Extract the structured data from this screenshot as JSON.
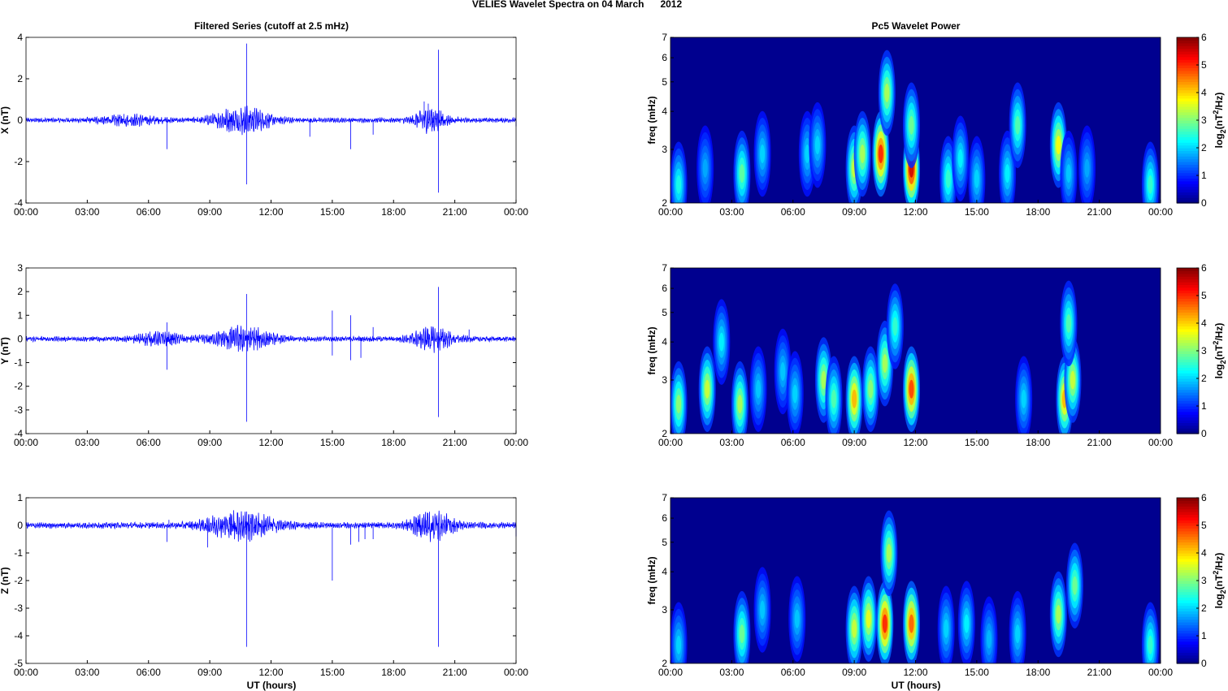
{
  "title": "VELIES Wavelet Spectra on 04 March      2012",
  "x_ticks": [
    "00:00",
    "03:00",
    "06:00",
    "09:00",
    "12:00",
    "15:00",
    "18:00",
    "21:00",
    "00:00"
  ],
  "x_label": "UT (hours)",
  "left_title": "Filtered Series (cutoff at 2.5 mHz)",
  "right_title": "Pc5 Wavelet Power",
  "spec_ylabel": "freq (mHz)",
  "freq_ticks": [
    "2",
    "3",
    "4",
    "5",
    "6",
    "7"
  ],
  "freq_values": [
    2,
    3,
    4,
    5,
    6,
    7
  ],
  "colorbar_ticks": [
    "0",
    "1",
    "2",
    "3",
    "4",
    "5",
    "6"
  ],
  "colorbar_label": {
    "base": "log",
    "sub": "2",
    "mid": "(nT",
    "sup": "2",
    "end": "/Hz)"
  },
  "colors": {
    "series_line": "#0000ff",
    "spectrum_background": "#00008f"
  },
  "chart_data": [
    {
      "type": "line",
      "series_name": "X",
      "ylabel": "X (nT)",
      "y_ticks": [
        "-4",
        "-2",
        "0",
        "2",
        "4"
      ],
      "ylim": [
        -4,
        4
      ],
      "xlim_hours": [
        0,
        24
      ],
      "spikes": [
        {
          "t": 6.9,
          "v": -1.4
        },
        {
          "t": 10.8,
          "v": 3.7
        },
        {
          "t": 10.8,
          "v": -3.1
        },
        {
          "t": 13.9,
          "v": -0.8
        },
        {
          "t": 15.9,
          "v": -1.4
        },
        {
          "t": 17.0,
          "v": -0.7
        },
        {
          "t": 19.5,
          "v": 0.9
        },
        {
          "t": 19.7,
          "v": 0.8
        },
        {
          "t": 20.2,
          "v": 3.4
        },
        {
          "t": 20.2,
          "v": -3.5
        },
        {
          "t": 4.8,
          "v": 0.3
        },
        {
          "t": 24.0,
          "v": -0.3
        }
      ],
      "activity_bursts": [
        {
          "t": 10.6,
          "amp": 0.55,
          "width": 1.4
        },
        {
          "t": 19.8,
          "amp": 0.5,
          "width": 0.8
        },
        {
          "t": 5.0,
          "amp": 0.2,
          "width": 1.5
        }
      ],
      "base_noise": 0.1
    },
    {
      "type": "line",
      "series_name": "Y",
      "ylabel": "Y (nT)",
      "y_ticks": [
        "-4",
        "-3",
        "-2",
        "-1",
        "0",
        "1",
        "2",
        "3"
      ],
      "ylim": [
        -4,
        3
      ],
      "xlim_hours": [
        0,
        24
      ],
      "spikes": [
        {
          "t": 6.9,
          "v": 0.7
        },
        {
          "t": 6.9,
          "v": -1.3
        },
        {
          "t": 10.8,
          "v": 1.9
        },
        {
          "t": 10.8,
          "v": -3.5
        },
        {
          "t": 15.0,
          "v": 1.2
        },
        {
          "t": 15.0,
          "v": -0.7
        },
        {
          "t": 15.9,
          "v": 1.0
        },
        {
          "t": 15.9,
          "v": -0.9
        },
        {
          "t": 16.4,
          "v": -0.8
        },
        {
          "t": 17.0,
          "v": 0.5
        },
        {
          "t": 20.2,
          "v": 2.2
        },
        {
          "t": 20.2,
          "v": -3.3
        },
        {
          "t": 21.7,
          "v": 0.4
        }
      ],
      "activity_bursts": [
        {
          "t": 10.6,
          "amp": 0.45,
          "width": 1.4
        },
        {
          "t": 19.9,
          "amp": 0.4,
          "width": 1.0
        },
        {
          "t": 6.5,
          "amp": 0.2,
          "width": 1.2
        }
      ],
      "base_noise": 0.1
    },
    {
      "type": "line",
      "series_name": "Z",
      "ylabel": "Z (nT)",
      "y_ticks": [
        "-5",
        "-4",
        "-3",
        "-2",
        "-1",
        "0",
        "1"
      ],
      "ylim": [
        -5,
        1
      ],
      "xlim_hours": [
        0,
        24
      ],
      "spikes": [
        {
          "t": 6.9,
          "v": -0.6
        },
        {
          "t": 8.9,
          "v": -0.8
        },
        {
          "t": 10.8,
          "v": 0.5
        },
        {
          "t": 10.8,
          "v": -4.4
        },
        {
          "t": 15.0,
          "v": -2.0
        },
        {
          "t": 15.9,
          "v": -0.7
        },
        {
          "t": 16.3,
          "v": -0.6
        },
        {
          "t": 16.6,
          "v": -0.5
        },
        {
          "t": 17.0,
          "v": -0.5
        },
        {
          "t": 20.2,
          "v": -4.4
        },
        {
          "t": 24.0,
          "v": -0.4
        },
        {
          "t": 7.0,
          "v": 0.2
        }
      ],
      "activity_bursts": [
        {
          "t": 10.5,
          "amp": 0.45,
          "width": 1.6
        },
        {
          "t": 19.9,
          "amp": 0.45,
          "width": 1.0
        }
      ],
      "base_noise": 0.1
    },
    {
      "type": "heatmap",
      "ylabel": "freq (mHz)",
      "ylim_mhz": [
        2,
        7
      ],
      "y_scale": "log",
      "colorbar_range": [
        0,
        6
      ],
      "colormap": "jet",
      "blobs": [
        {
          "t": 0.4,
          "f": 2.3,
          "p": 2.0
        },
        {
          "t": 1.7,
          "f": 2.6,
          "p": 1.3
        },
        {
          "t": 3.5,
          "f": 2.5,
          "p": 2.5
        },
        {
          "t": 4.5,
          "f": 2.9,
          "p": 1.6
        },
        {
          "t": 6.7,
          "f": 2.9,
          "p": 1.6
        },
        {
          "t": 7.2,
          "f": 3.1,
          "p": 1.6
        },
        {
          "t": 9.0,
          "f": 2.6,
          "p": 3.2
        },
        {
          "t": 9.4,
          "f": 2.9,
          "p": 3.0
        },
        {
          "t": 10.3,
          "f": 2.9,
          "p": 5.0
        },
        {
          "t": 10.6,
          "f": 4.6,
          "p": 3.0
        },
        {
          "t": 11.8,
          "f": 2.6,
          "p": 5.5
        },
        {
          "t": 11.8,
          "f": 3.6,
          "p": 2.6
        },
        {
          "t": 13.6,
          "f": 2.4,
          "p": 2.2
        },
        {
          "t": 14.2,
          "f": 2.8,
          "p": 1.8
        },
        {
          "t": 15.0,
          "f": 2.4,
          "p": 1.6
        },
        {
          "t": 16.5,
          "f": 2.5,
          "p": 1.8
        },
        {
          "t": 17.0,
          "f": 3.6,
          "p": 2.4
        },
        {
          "t": 19.0,
          "f": 3.1,
          "p": 3.5
        },
        {
          "t": 19.5,
          "f": 2.5,
          "p": 1.5
        },
        {
          "t": 20.4,
          "f": 2.6,
          "p": 1.3
        },
        {
          "t": 23.5,
          "f": 2.3,
          "p": 2.2
        }
      ]
    },
    {
      "type": "heatmap",
      "ylabel": "freq (mHz)",
      "ylim_mhz": [
        2,
        7
      ],
      "y_scale": "log",
      "colorbar_range": [
        0,
        6
      ],
      "colormap": "jet",
      "blobs": [
        {
          "t": 0.4,
          "f": 2.5,
          "p": 2.8
        },
        {
          "t": 1.8,
          "f": 2.8,
          "p": 3.2
        },
        {
          "t": 2.5,
          "f": 4.0,
          "p": 1.8
        },
        {
          "t": 3.4,
          "f": 2.5,
          "p": 3.0
        },
        {
          "t": 4.3,
          "f": 2.8,
          "p": 1.5
        },
        {
          "t": 5.5,
          "f": 3.2,
          "p": 1.5
        },
        {
          "t": 6.1,
          "f": 2.7,
          "p": 1.6
        },
        {
          "t": 7.5,
          "f": 3.0,
          "p": 3.0
        },
        {
          "t": 8.0,
          "f": 2.6,
          "p": 2.4
        },
        {
          "t": 9.0,
          "f": 2.6,
          "p": 4.0
        },
        {
          "t": 9.8,
          "f": 2.8,
          "p": 2.8
        },
        {
          "t": 10.5,
          "f": 3.4,
          "p": 3.0
        },
        {
          "t": 11.0,
          "f": 4.5,
          "p": 2.2
        },
        {
          "t": 11.8,
          "f": 2.8,
          "p": 4.8
        },
        {
          "t": 17.3,
          "f": 2.6,
          "p": 1.6
        },
        {
          "t": 19.3,
          "f": 2.6,
          "p": 4.0
        },
        {
          "t": 19.7,
          "f": 3.0,
          "p": 3.2
        },
        {
          "t": 19.5,
          "f": 4.6,
          "p": 2.4
        }
      ]
    },
    {
      "type": "heatmap",
      "ylabel": "freq (mHz)",
      "ylim_mhz": [
        2,
        7
      ],
      "y_scale": "log",
      "colorbar_range": [
        0,
        6
      ],
      "colormap": "jet",
      "blobs": [
        {
          "t": 0.4,
          "f": 2.3,
          "p": 1.6
        },
        {
          "t": 3.5,
          "f": 2.5,
          "p": 2.6
        },
        {
          "t": 4.5,
          "f": 3.0,
          "p": 1.5
        },
        {
          "t": 6.2,
          "f": 2.8,
          "p": 1.5
        },
        {
          "t": 9.0,
          "f": 2.6,
          "p": 3.2
        },
        {
          "t": 9.7,
          "f": 2.8,
          "p": 3.4
        },
        {
          "t": 10.5,
          "f": 2.7,
          "p": 5.0
        },
        {
          "t": 10.7,
          "f": 4.6,
          "p": 3.0
        },
        {
          "t": 11.8,
          "f": 2.7,
          "p": 4.6
        },
        {
          "t": 13.5,
          "f": 2.6,
          "p": 1.6
        },
        {
          "t": 14.5,
          "f": 2.7,
          "p": 1.8
        },
        {
          "t": 15.6,
          "f": 2.4,
          "p": 1.4
        },
        {
          "t": 17.0,
          "f": 2.5,
          "p": 1.6
        },
        {
          "t": 19.0,
          "f": 2.9,
          "p": 3.0
        },
        {
          "t": 19.8,
          "f": 3.6,
          "p": 2.6
        },
        {
          "t": 23.5,
          "f": 2.3,
          "p": 2.2
        }
      ]
    }
  ]
}
